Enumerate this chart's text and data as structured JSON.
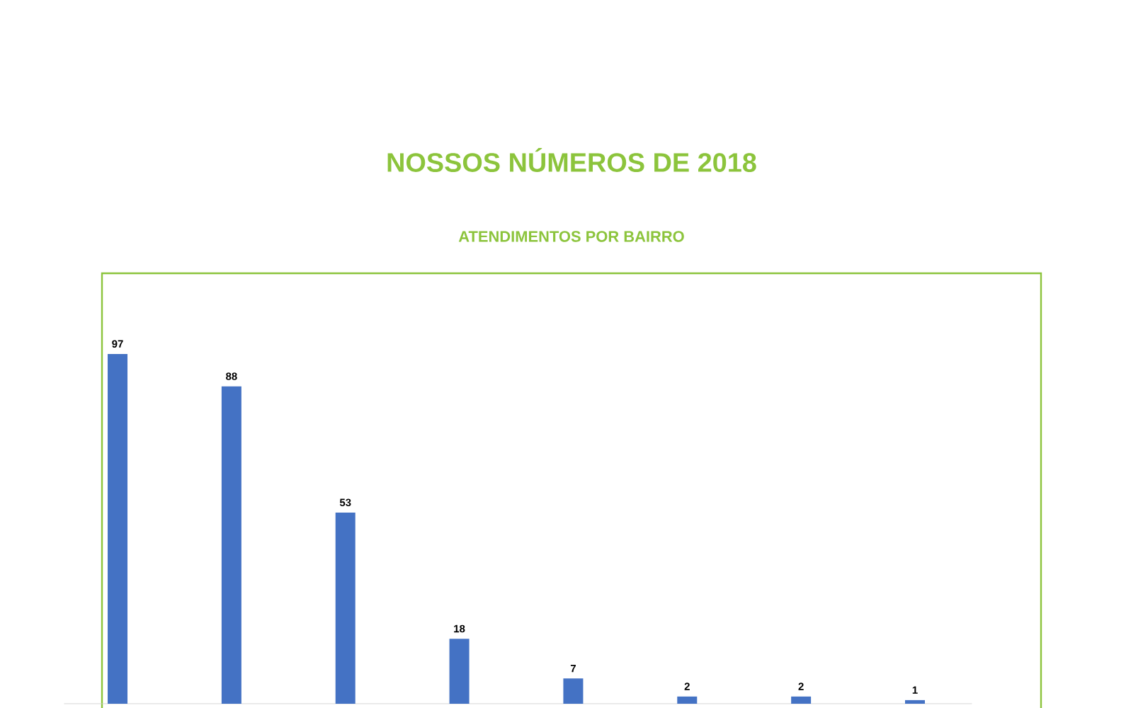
{
  "chart_data": {
    "type": "bar",
    "title": "NOSSOS NÚMEROS DE 2018",
    "subtitle": "ATENDIMENTOS POR BAIRRO",
    "categories": [
      null,
      null,
      null,
      null,
      null,
      null,
      null,
      null
    ],
    "values": [
      97,
      88,
      53,
      18,
      7,
      2,
      2,
      1
    ],
    "color": "#4472c4",
    "data_labels": true
  }
}
